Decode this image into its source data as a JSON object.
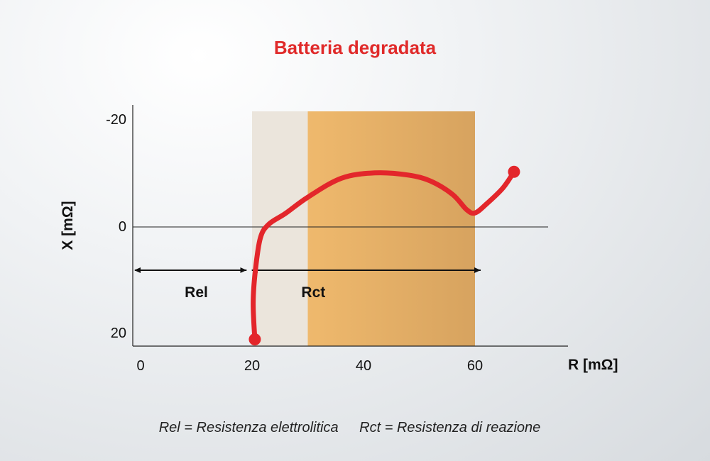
{
  "chart_data": {
    "type": "line",
    "title": "Batteria degradata",
    "xlabel": "R [mΩ]",
    "ylabel": "X [mΩ]",
    "xlim": [
      -1.5,
      73
    ],
    "ylim": [
      22,
      -22
    ],
    "x_ticks": [
      0,
      20,
      40,
      60
    ],
    "y_ticks": [
      -20,
      0,
      20
    ],
    "regions": [
      {
        "name": "electrolytic",
        "x": [
          20,
          30
        ],
        "color": "#ebe5dc"
      },
      {
        "name": "charge-transfer",
        "x": [
          30,
          60
        ],
        "color": "#e5aa62"
      }
    ],
    "series": [
      {
        "color": "#e3262b",
        "x": [
          20.5,
          20.2,
          20.6,
          21.5,
          23,
          26,
          30,
          36,
          42,
          48,
          52,
          56,
          58.5,
          60,
          62,
          65,
          67
        ],
        "y": [
          20.8,
          14,
          8,
          2,
          -0.5,
          -2.5,
          -5.5,
          -9,
          -10,
          -9.6,
          -8.5,
          -6,
          -3.2,
          -2.6,
          -4.2,
          -7.2,
          -10.2
        ]
      }
    ],
    "markers": [
      {
        "x": 20.5,
        "y": 20.8
      },
      {
        "x": 67,
        "y": -10.2
      }
    ],
    "annotations": [
      {
        "label": "Rel",
        "from": 0,
        "to": 18,
        "y": 8,
        "label_x": 10
      },
      {
        "label": "Rct",
        "from": 21,
        "to": 60,
        "y": 8,
        "label_x": 31
      }
    ],
    "legend": [
      "Rel = Resistenza elettrolitica",
      "Rct = Resistenza di reazione"
    ]
  }
}
